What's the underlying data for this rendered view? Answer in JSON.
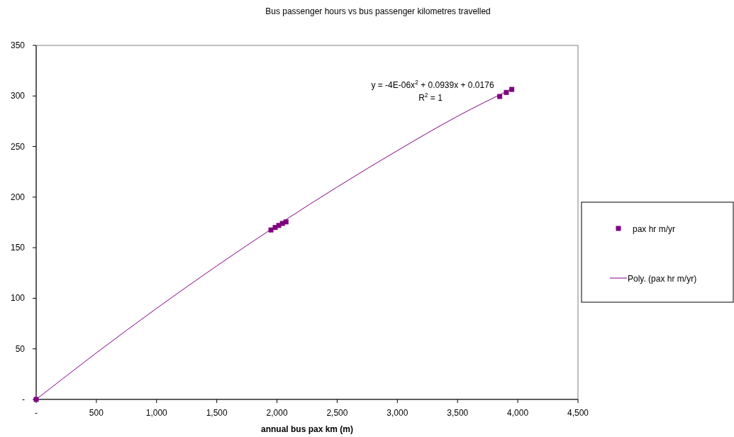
{
  "chart_data": {
    "type": "scatter",
    "title": "Bus passenger hours vs bus passenger kilometres travelled",
    "xlabel": "annual bus pax km (m)",
    "xlim": [
      0,
      4500
    ],
    "xticks": [
      {
        "value": 0,
        "label": "-"
      },
      500,
      {
        "value": 1000,
        "label": "1,000"
      },
      {
        "value": 1500,
        "label": "1,500"
      },
      {
        "value": 2000,
        "label": "2,000"
      },
      {
        "value": 2500,
        "label": "2,500"
      },
      {
        "value": 3000,
        "label": "3,000"
      },
      {
        "value": 3500,
        "label": "3,500"
      },
      {
        "value": 4000,
        "label": "4,000"
      },
      {
        "value": 4500,
        "label": "4,500"
      }
    ],
    "ylim": [
      0,
      350
    ],
    "yticks": [
      {
        "value": 0,
        "label": "-"
      },
      50,
      100,
      150,
      200,
      250,
      300,
      350
    ],
    "grid": false,
    "legend": "right",
    "marker": "square",
    "series": [
      {
        "name": "pax hr m/yr",
        "color": "#800080",
        "type": "scatter",
        "x": [
          0,
          1950,
          1985,
          2015,
          2045,
          2075,
          3850,
          3905,
          3950
        ],
        "values": [
          0,
          167.5,
          170,
          172,
          174,
          175.5,
          299.5,
          303.5,
          306.5
        ]
      },
      {
        "name": "Poly. (pax hr m/yr)",
        "color": "#800080",
        "type": "line",
        "marker": "none",
        "line_style": "solid",
        "x": [
          0,
          500,
          1000,
          1500,
          2000,
          2500,
          3000,
          3500,
          3950
        ],
        "values": [
          0,
          46,
          90,
          132,
          172,
          210,
          246,
          280,
          307
        ]
      }
    ],
    "annotations": [
      "y = -4E-06x$^{2}$ + 0.0939x + 0.0176",
      "R$^{2}$ = 1"
    ]
  }
}
